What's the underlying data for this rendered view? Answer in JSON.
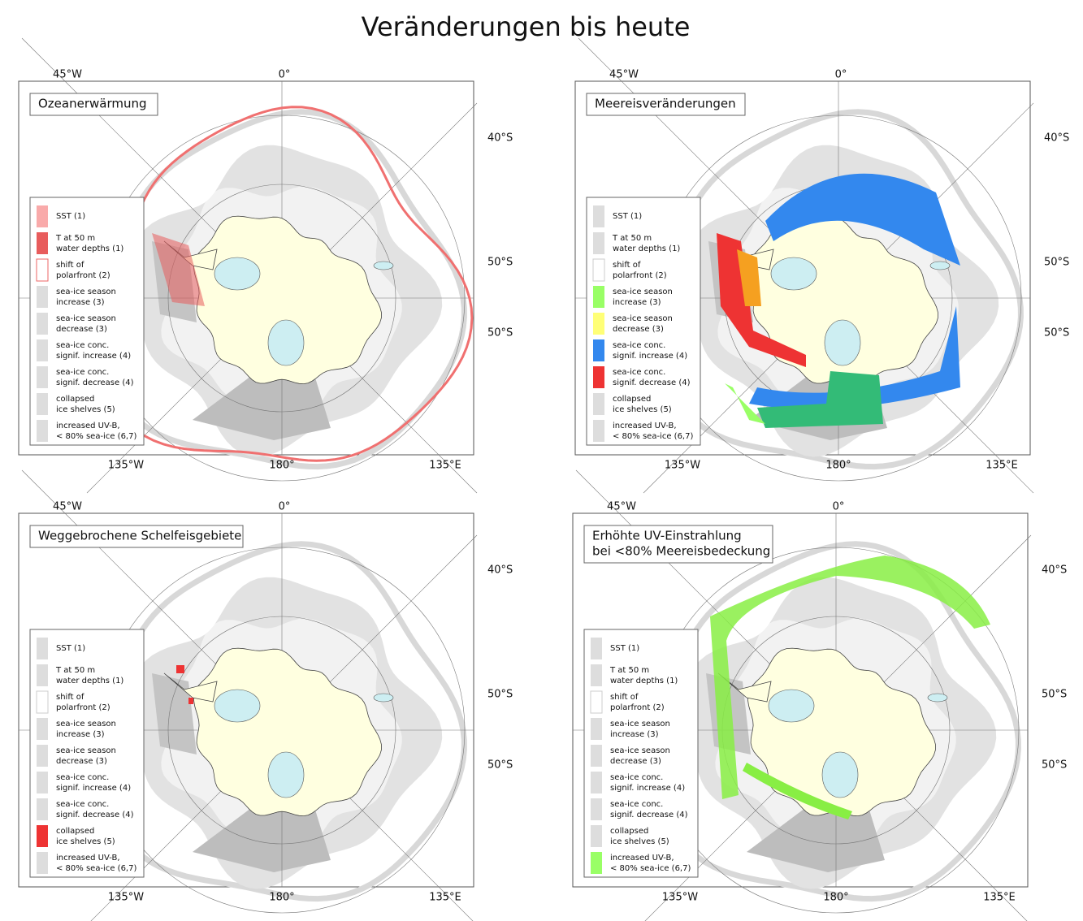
{
  "title": "Veränderungen bis heute",
  "map_labels": {
    "lon_top": [
      "45°W",
      "0°"
    ],
    "lat": [
      "40°S",
      "50°S",
      "50°S"
    ],
    "lon_bottom": [
      "135°W",
      "180°",
      "135°E"
    ]
  },
  "legend": {
    "items": [
      [
        "SST (1)"
      ],
      [
        "T at 50 m",
        "water depths (1)"
      ],
      [
        "shift of",
        "polarfront (2)"
      ],
      [
        "sea-ice season",
        "increase (3)"
      ],
      [
        "sea-ice season",
        "decrease (3)"
      ],
      [
        "sea-ice conc.",
        "signif. increase (4)"
      ],
      [
        "sea-ice conc.",
        "signif. decrease (4)"
      ],
      [
        "collapsed",
        "ice shelves (5)"
      ],
      [
        "increased UV-B,",
        "< 80% sea-ice (6,7)"
      ]
    ]
  },
  "panels": [
    {
      "title": [
        "Ozeanerwärmung"
      ],
      "legend_colors": [
        "#f9aaaa",
        "#e85c5c",
        "#ffffff",
        "#dddddd",
        "#dddddd",
        "#dddddd",
        "#dddddd",
        "#dddddd",
        "#dddddd"
      ]
    },
    {
      "title": [
        "Meereisveränderungen"
      ],
      "legend_colors": [
        "#dddddd",
        "#dddddd",
        "#ffffff",
        "#99ff66",
        "#ffff77",
        "#3388ee",
        "#ee3333",
        "#dddddd",
        "#dddddd"
      ]
    },
    {
      "title": [
        "Weggebrochene Schelfeisgebiete"
      ],
      "legend_colors": [
        "#dddddd",
        "#dddddd",
        "#ffffff",
        "#dddddd",
        "#dddddd",
        "#dddddd",
        "#dddddd",
        "#ee3333",
        "#dddddd"
      ]
    },
    {
      "title": [
        "Erhöhte UV-Einstrahlung",
        "bei <80% Meereisbedeckung"
      ],
      "legend_colors": [
        "#dddddd",
        "#dddddd",
        "#ffffff",
        "#dddddd",
        "#dddddd",
        "#dddddd",
        "#dddddd",
        "#dddddd",
        "#99ff66"
      ]
    }
  ]
}
